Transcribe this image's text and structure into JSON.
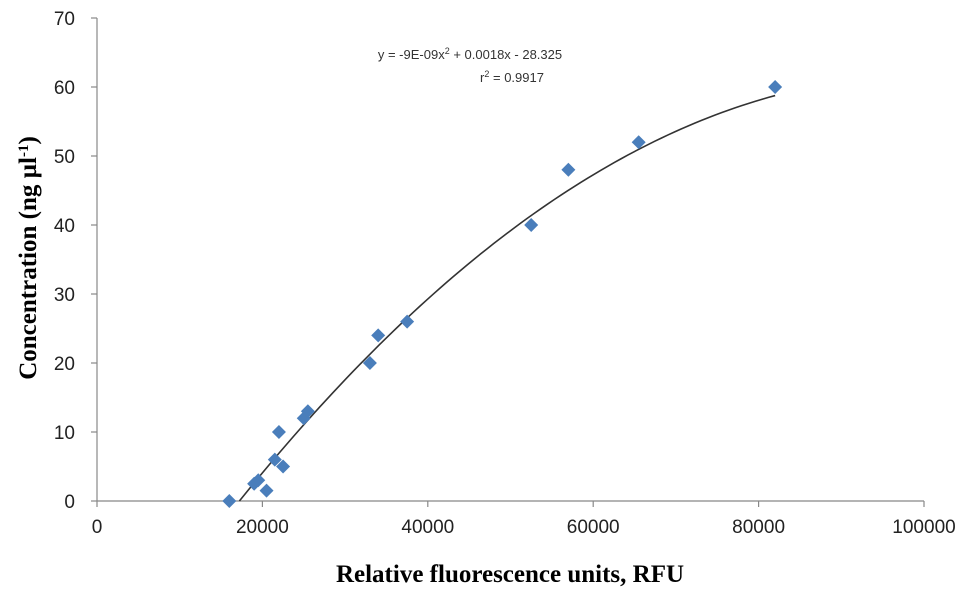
{
  "chart_data": {
    "type": "scatter",
    "xlabel": "Relative fluorescence units, RFU",
    "ylabel_main": "Concentration (ng µl",
    "ylabel_sup": "-1",
    "ylabel_end": ")",
    "xlim": [
      0,
      100000
    ],
    "ylim": [
      0,
      70
    ],
    "x_ticks": [
      0,
      20000,
      40000,
      60000,
      80000,
      100000
    ],
    "y_ticks": [
      0,
      10,
      20,
      30,
      40,
      50,
      60,
      70
    ],
    "grid": false,
    "legend": "none",
    "marker_color": "#4a7ebb",
    "trendline_color": "#333333",
    "annotations": {
      "equation_main": "y = -9E-09x",
      "equation_sup": "2",
      "equation_end": " + 0.0018x - 28.325",
      "r2_main": "r",
      "r2_sup": "2",
      "r2_end": " = 0.9917"
    },
    "trendline": {
      "type": "polynomial",
      "coefficients": {
        "a": -9e-09,
        "b": 0.0018,
        "c": -28.325
      }
    },
    "series": [
      {
        "points": [
          {
            "x": 16000,
            "y": 0
          },
          {
            "x": 19000,
            "y": 2.5
          },
          {
            "x": 19500,
            "y": 3
          },
          {
            "x": 20500,
            "y": 1.5
          },
          {
            "x": 21500,
            "y": 6
          },
          {
            "x": 22000,
            "y": 10
          },
          {
            "x": 22500,
            "y": 5
          },
          {
            "x": 25000,
            "y": 12
          },
          {
            "x": 25500,
            "y": 13
          },
          {
            "x": 33000,
            "y": 20
          },
          {
            "x": 34000,
            "y": 24
          },
          {
            "x": 37500,
            "y": 26
          },
          {
            "x": 52500,
            "y": 40
          },
          {
            "x": 57000,
            "y": 48
          },
          {
            "x": 65500,
            "y": 52
          },
          {
            "x": 82000,
            "y": 60
          }
        ]
      }
    ]
  }
}
